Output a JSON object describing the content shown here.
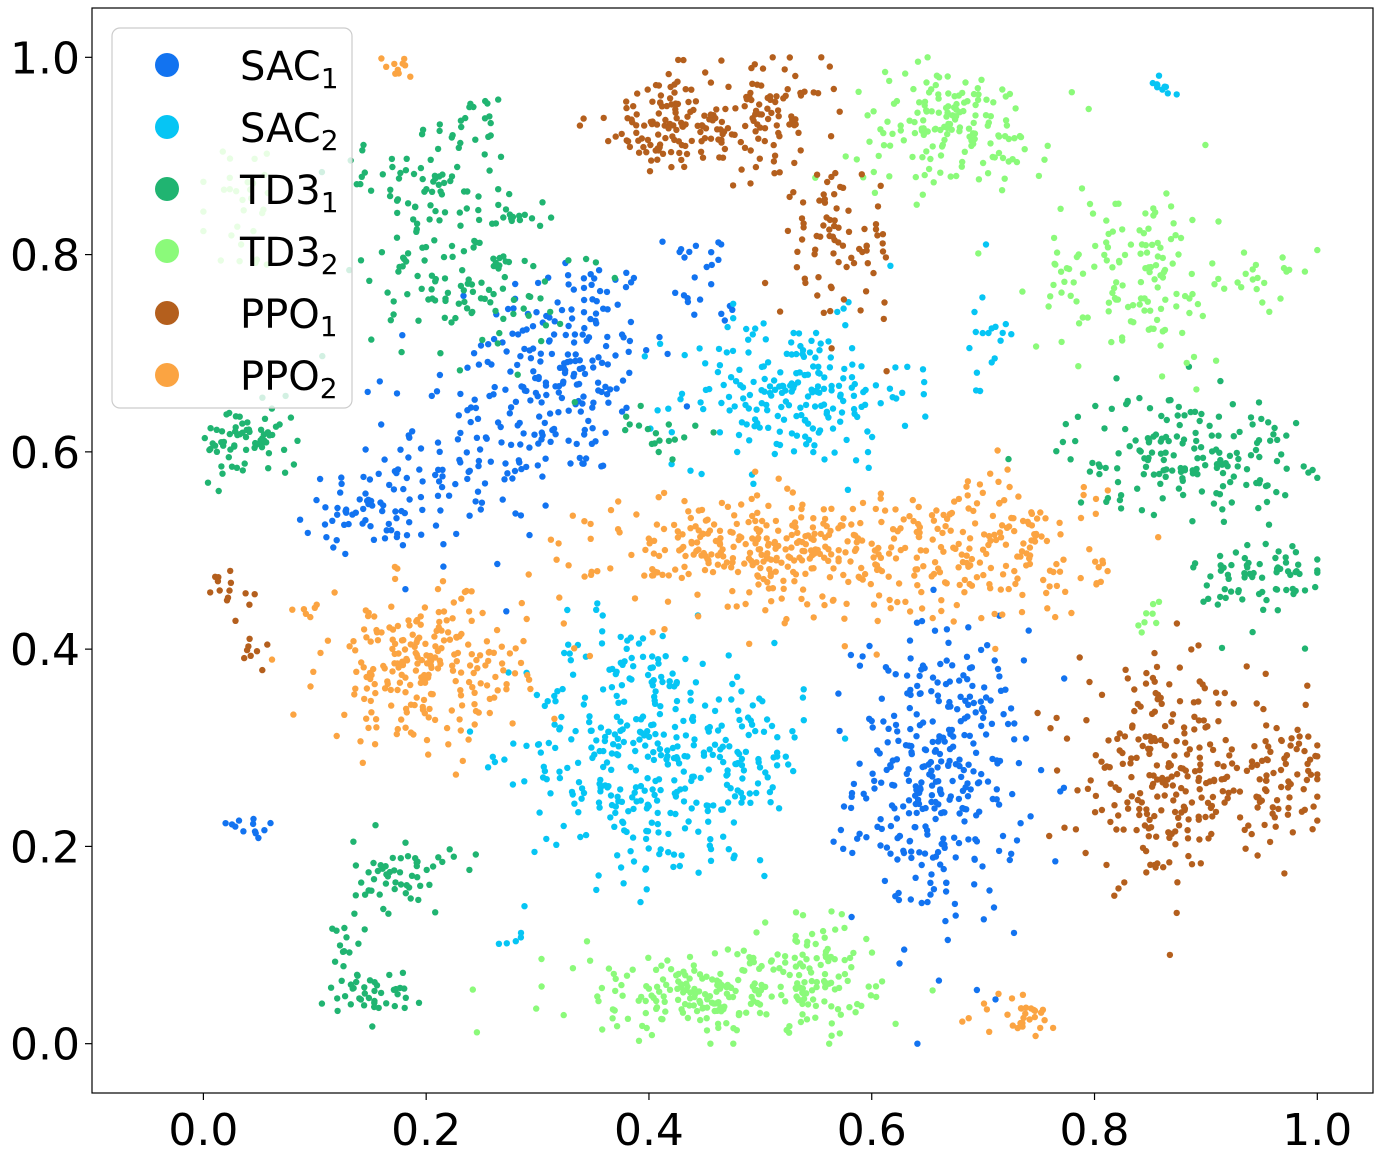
{
  "chart_data": {
    "type": "scatter",
    "title": "",
    "xlabel": "",
    "ylabel": "",
    "xlim": [
      -0.1,
      1.05
    ],
    "ylim": [
      -0.05,
      1.05
    ],
    "x_ticks": [
      0.0,
      0.2,
      0.4,
      0.6,
      0.8,
      1.0
    ],
    "x_tick_labels": [
      "0.0",
      "0.2",
      "0.4",
      "0.6",
      "0.8",
      "1.0"
    ],
    "y_ticks": [
      0.0,
      0.2,
      0.4,
      0.6,
      0.8,
      1.0
    ],
    "y_tick_labels": [
      "0.0",
      "0.2",
      "0.4",
      "0.6",
      "0.8",
      "1.0"
    ],
    "grid": false,
    "legend_position": "top-left",
    "series": [
      {
        "name": "SAC1",
        "label_base": "SAC",
        "label_sub": "1",
        "color": "#1273f0",
        "clusters": [
          {
            "center": [
              0.33,
              0.69
            ],
            "spread": [
              0.05,
              0.08
            ],
            "count": 180
          },
          {
            "center": [
              0.24,
              0.6
            ],
            "spread": [
              0.05,
              0.08
            ],
            "count": 110
          },
          {
            "center": [
              0.15,
              0.54
            ],
            "spread": [
              0.04,
              0.025
            ],
            "count": 60
          },
          {
            "center": [
              0.44,
              0.77
            ],
            "spread": [
              0.025,
              0.04
            ],
            "count": 25
          },
          {
            "center": [
              0.66,
              0.27
            ],
            "spread": [
              0.05,
              0.1
            ],
            "count": 330
          },
          {
            "center": [
              0.04,
              0.22
            ],
            "spread": [
              0.025,
              0.01
            ],
            "count": 12
          }
        ]
      },
      {
        "name": "SAC2",
        "label_base": "SAC",
        "label_sub": "2",
        "color": "#06c5f4",
        "clusters": [
          {
            "center": [
              0.53,
              0.66
            ],
            "spread": [
              0.07,
              0.05
            ],
            "count": 210
          },
          {
            "center": [
              0.38,
              0.3
            ],
            "spread": [
              0.06,
              0.09
            ],
            "count": 280
          },
          {
            "center": [
              0.48,
              0.29
            ],
            "spread": [
              0.04,
              0.06
            ],
            "count": 120
          },
          {
            "center": [
              0.7,
              0.72
            ],
            "spread": [
              0.015,
              0.05
            ],
            "count": 18
          },
          {
            "center": [
              0.86,
              0.97
            ],
            "spread": [
              0.008,
              0.008
            ],
            "count": 10
          },
          {
            "center": [
              0.28,
              0.11
            ],
            "spread": [
              0.01,
              0.01
            ],
            "count": 5
          }
        ]
      },
      {
        "name": "TD31",
        "label_base": "TD3",
        "label_sub": "1",
        "color": "#20b471",
        "clusters": [
          {
            "center": [
              0.19,
              0.87
            ],
            "spread": [
              0.05,
              0.03
            ],
            "count": 60
          },
          {
            "center": [
              0.24,
              0.78
            ],
            "spread": [
              0.06,
              0.06
            ],
            "count": 120
          },
          {
            "center": [
              0.04,
              0.61
            ],
            "spread": [
              0.03,
              0.025
            ],
            "count": 70
          },
          {
            "center": [
              0.24,
              0.93
            ],
            "spread": [
              0.02,
              0.02
            ],
            "count": 20
          },
          {
            "center": [
              0.28,
              0.84
            ],
            "spread": [
              0.015,
              0.01
            ],
            "count": 10
          },
          {
            "center": [
              0.41,
              0.62
            ],
            "spread": [
              0.025,
              0.015
            ],
            "count": 18
          },
          {
            "center": [
              0.88,
              0.6
            ],
            "spread": [
              0.07,
              0.04
            ],
            "count": 170
          },
          {
            "center": [
              0.95,
              0.47
            ],
            "spread": [
              0.04,
              0.035
            ],
            "count": 70
          },
          {
            "center": [
              0.18,
              0.17
            ],
            "spread": [
              0.03,
              0.025
            ],
            "count": 55
          },
          {
            "center": [
              0.15,
              0.05
            ],
            "spread": [
              0.025,
              0.015
            ],
            "count": 40
          },
          {
            "center": [
              0.13,
              0.11
            ],
            "spread": [
              0.01,
              0.025
            ],
            "count": 14
          }
        ]
      },
      {
        "name": "TD32",
        "label_base": "TD3",
        "label_sub": "2",
        "color": "#8bfa7a",
        "clusters": [
          {
            "center": [
              0.67,
              0.93
            ],
            "spread": [
              0.06,
              0.04
            ],
            "count": 160
          },
          {
            "center": [
              0.84,
              0.78
            ],
            "spread": [
              0.06,
              0.06
            ],
            "count": 140
          },
          {
            "center": [
              0.96,
              0.78
            ],
            "spread": [
              0.02,
              0.015
            ],
            "count": 15
          },
          {
            "center": [
              0.45,
              0.05
            ],
            "spread": [
              0.09,
              0.03
            ],
            "count": 200
          },
          {
            "center": [
              0.55,
              0.07
            ],
            "spread": [
              0.03,
              0.04
            ],
            "count": 80
          },
          {
            "center": [
              0.85,
              0.44
            ],
            "spread": [
              0.01,
              0.015
            ],
            "count": 8
          },
          {
            "center": [
              0.04,
              0.85
            ],
            "spread": [
              0.03,
              0.04
            ],
            "count": 30
          }
        ]
      },
      {
        "name": "PPO1",
        "label_base": "PPO",
        "label_sub": "1",
        "color": "#b45f1d",
        "clusters": [
          {
            "center": [
              0.42,
              0.93
            ],
            "spread": [
              0.05,
              0.035
            ],
            "count": 120
          },
          {
            "center": [
              0.5,
              0.94
            ],
            "spread": [
              0.04,
              0.035
            ],
            "count": 90
          },
          {
            "center": [
              0.57,
              0.81
            ],
            "spread": [
              0.035,
              0.05
            ],
            "count": 80
          },
          {
            "center": [
              0.86,
              0.27
            ],
            "spread": [
              0.05,
              0.07
            ],
            "count": 220
          },
          {
            "center": [
              0.96,
              0.27
            ],
            "spread": [
              0.035,
              0.05
            ],
            "count": 100
          },
          {
            "center": [
              0.02,
              0.46
            ],
            "spread": [
              0.015,
              0.015
            ],
            "count": 15
          },
          {
            "center": [
              0.05,
              0.39
            ],
            "spread": [
              0.01,
              0.015
            ],
            "count": 8
          }
        ]
      },
      {
        "name": "PPO2",
        "label_base": "PPO",
        "label_sub": "2",
        "color": "#fba442",
        "clusters": [
          {
            "center": [
              0.52,
              0.5
            ],
            "spread": [
              0.11,
              0.04
            ],
            "count": 360
          },
          {
            "center": [
              0.72,
              0.5
            ],
            "spread": [
              0.06,
              0.05
            ],
            "count": 150
          },
          {
            "center": [
              0.2,
              0.38
            ],
            "spread": [
              0.06,
              0.05
            ],
            "count": 240
          },
          {
            "center": [
              0.73,
              0.03
            ],
            "spread": [
              0.025,
              0.015
            ],
            "count": 30
          },
          {
            "center": [
              0.18,
              0.99
            ],
            "spread": [
              0.015,
              0.008
            ],
            "count": 10
          },
          {
            "center": [
              0.09,
              0.44
            ],
            "spread": [
              0.01,
              0.01
            ],
            "count": 6
          }
        ]
      }
    ]
  }
}
